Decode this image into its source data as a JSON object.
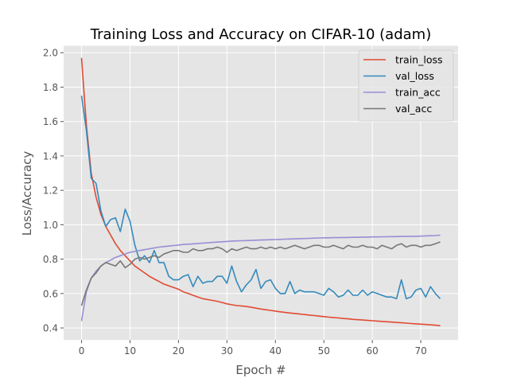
{
  "chart_data": {
    "type": "line",
    "title": "Training Loss and Accuracy on CIFAR-10 (adam)",
    "xlabel": "Epoch #",
    "ylabel": "Loss/Accuracy",
    "xlim": [
      -3.7,
      77.7
    ],
    "ylim": [
      0.33,
      2.04
    ],
    "xticks": [
      0,
      10,
      20,
      30,
      40,
      50,
      60,
      70
    ],
    "yticks": [
      0.4,
      0.6,
      0.8,
      1.0,
      1.2,
      1.4,
      1.6,
      1.8,
      2.0
    ],
    "xtick_labels": [
      "0",
      "10",
      "20",
      "30",
      "40",
      "50",
      "60",
      "70"
    ],
    "ytick_labels": [
      "0.4",
      "0.6",
      "0.8",
      "1.0",
      "1.2",
      "1.4",
      "1.6",
      "1.8",
      "2.0"
    ],
    "grid": true,
    "legend_position": "upper right",
    "background": "#e5e5e5",
    "x": [
      0,
      1,
      2,
      3,
      4,
      5,
      6,
      7,
      8,
      9,
      10,
      11,
      12,
      13,
      14,
      15,
      16,
      17,
      18,
      19,
      20,
      21,
      22,
      23,
      24,
      25,
      26,
      27,
      28,
      29,
      30,
      31,
      32,
      33,
      34,
      35,
      36,
      37,
      38,
      39,
      40,
      41,
      42,
      43,
      44,
      45,
      46,
      47,
      48,
      49,
      50,
      51,
      52,
      53,
      54,
      55,
      56,
      57,
      58,
      59,
      60,
      61,
      62,
      63,
      64,
      65,
      66,
      67,
      68,
      69,
      70,
      71,
      72,
      73,
      74
    ],
    "series": [
      {
        "name": "train_loss",
        "color": "#e24a33",
        "values": [
          1.97,
          1.58,
          1.3,
          1.16,
          1.06,
          0.99,
          0.94,
          0.89,
          0.85,
          0.82,
          0.79,
          0.76,
          0.74,
          0.72,
          0.7,
          0.685,
          0.67,
          0.655,
          0.645,
          0.635,
          0.625,
          0.61,
          0.6,
          0.59,
          0.58,
          0.57,
          0.565,
          0.56,
          0.555,
          0.548,
          0.54,
          0.535,
          0.53,
          0.528,
          0.525,
          0.52,
          0.515,
          0.51,
          0.506,
          0.502,
          0.498,
          0.494,
          0.49,
          0.487,
          0.484,
          0.481,
          0.478,
          0.475,
          0.472,
          0.469,
          0.466,
          0.463,
          0.46,
          0.458,
          0.455,
          0.453,
          0.45,
          0.448,
          0.446,
          0.444,
          0.442,
          0.44,
          0.438,
          0.436,
          0.434,
          0.432,
          0.43,
          0.428,
          0.426,
          0.424,
          0.422,
          0.42,
          0.418,
          0.416,
          0.413
        ]
      },
      {
        "name": "val_loss",
        "color": "#348abd",
        "values": [
          1.75,
          1.55,
          1.27,
          1.24,
          1.08,
          0.99,
          1.03,
          1.04,
          0.96,
          1.09,
          1.02,
          0.88,
          0.79,
          0.82,
          0.78,
          0.85,
          0.78,
          0.78,
          0.7,
          0.68,
          0.68,
          0.7,
          0.71,
          0.64,
          0.7,
          0.66,
          0.67,
          0.67,
          0.7,
          0.7,
          0.66,
          0.76,
          0.67,
          0.61,
          0.65,
          0.68,
          0.74,
          0.63,
          0.67,
          0.68,
          0.63,
          0.6,
          0.6,
          0.67,
          0.6,
          0.62,
          0.61,
          0.61,
          0.61,
          0.6,
          0.59,
          0.63,
          0.61,
          0.58,
          0.59,
          0.62,
          0.59,
          0.59,
          0.62,
          0.59,
          0.61,
          0.6,
          0.59,
          0.58,
          0.58,
          0.57,
          0.68,
          0.57,
          0.58,
          0.62,
          0.63,
          0.58,
          0.64,
          0.6,
          0.57
        ]
      },
      {
        "name": "train_acc",
        "color": "#988ed5",
        "values": [
          0.44,
          0.61,
          0.69,
          0.73,
          0.76,
          0.78,
          0.795,
          0.81,
          0.82,
          0.83,
          0.84,
          0.845,
          0.85,
          0.855,
          0.86,
          0.865,
          0.87,
          0.873,
          0.876,
          0.879,
          0.882,
          0.885,
          0.887,
          0.889,
          0.891,
          0.893,
          0.895,
          0.897,
          0.899,
          0.901,
          0.903,
          0.905,
          0.906,
          0.907,
          0.908,
          0.909,
          0.91,
          0.911,
          0.912,
          0.913,
          0.914,
          0.915,
          0.916,
          0.917,
          0.918,
          0.919,
          0.92,
          0.921,
          0.922,
          0.923,
          0.924,
          0.924,
          0.925,
          0.925,
          0.926,
          0.926,
          0.927,
          0.927,
          0.928,
          0.928,
          0.929,
          0.929,
          0.93,
          0.93,
          0.931,
          0.931,
          0.932,
          0.932,
          0.933,
          0.933,
          0.934,
          0.935,
          0.936,
          0.937,
          0.94
        ]
      },
      {
        "name": "val_acc",
        "color": "#777777",
        "values": [
          0.53,
          0.62,
          0.69,
          0.72,
          0.76,
          0.78,
          0.77,
          0.76,
          0.79,
          0.75,
          0.77,
          0.8,
          0.81,
          0.8,
          0.81,
          0.82,
          0.81,
          0.83,
          0.84,
          0.85,
          0.85,
          0.84,
          0.84,
          0.86,
          0.85,
          0.85,
          0.86,
          0.86,
          0.87,
          0.86,
          0.84,
          0.86,
          0.85,
          0.86,
          0.87,
          0.86,
          0.86,
          0.87,
          0.86,
          0.87,
          0.86,
          0.87,
          0.86,
          0.87,
          0.88,
          0.87,
          0.86,
          0.87,
          0.88,
          0.88,
          0.87,
          0.87,
          0.88,
          0.87,
          0.86,
          0.88,
          0.87,
          0.87,
          0.88,
          0.87,
          0.87,
          0.86,
          0.88,
          0.87,
          0.86,
          0.88,
          0.89,
          0.87,
          0.88,
          0.88,
          0.87,
          0.88,
          0.88,
          0.89,
          0.9
        ]
      }
    ]
  }
}
